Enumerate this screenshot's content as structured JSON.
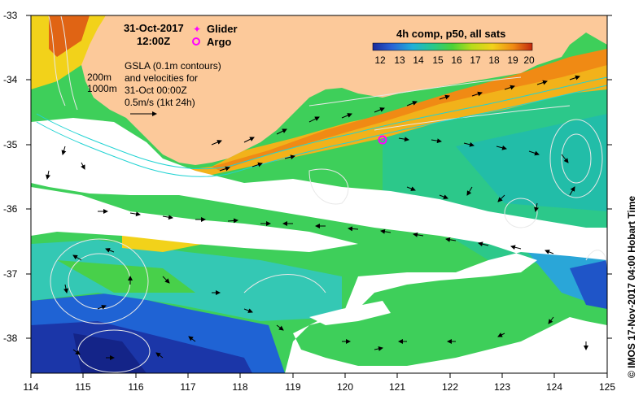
{
  "map": {
    "date_title": "31-Oct-2017",
    "time_title": "12:00Z",
    "legend": {
      "glider_label": "Glider",
      "argo_label": "Argo",
      "glider_color": "#ff00ff",
      "argo_color": "#ff00ff"
    },
    "gsla_lines": [
      "GSLA (0.1m contours)",
      "and velocities for",
      "31-Oct 00:00Z"
    ],
    "velocity_scale_label": "0.5m/s (1kt 24h)",
    "depth_labels": [
      "200m",
      "1000m"
    ],
    "colorbar": {
      "title": "4h comp, p50, all sats",
      "ticks": [
        "12",
        "13",
        "14",
        "15",
        "16",
        "17",
        "18",
        "19",
        "20"
      ],
      "min": 12,
      "max": 20
    },
    "x_ticks": [
      "114",
      "115",
      "116",
      "117",
      "118",
      "119",
      "120",
      "121",
      "122",
      "123",
      "124",
      "125"
    ],
    "y_ticks": [
      "-33",
      "-34",
      "-35",
      "-36",
      "-37",
      "-38"
    ],
    "credit": "© IMOS 17-Nov-2017 04:00 Hobart Time",
    "colors": {
      "land": "#fcc99a",
      "cloud": "#ffffff",
      "contour": "#e8e8e8",
      "isobath": "#22d3d3"
    }
  }
}
